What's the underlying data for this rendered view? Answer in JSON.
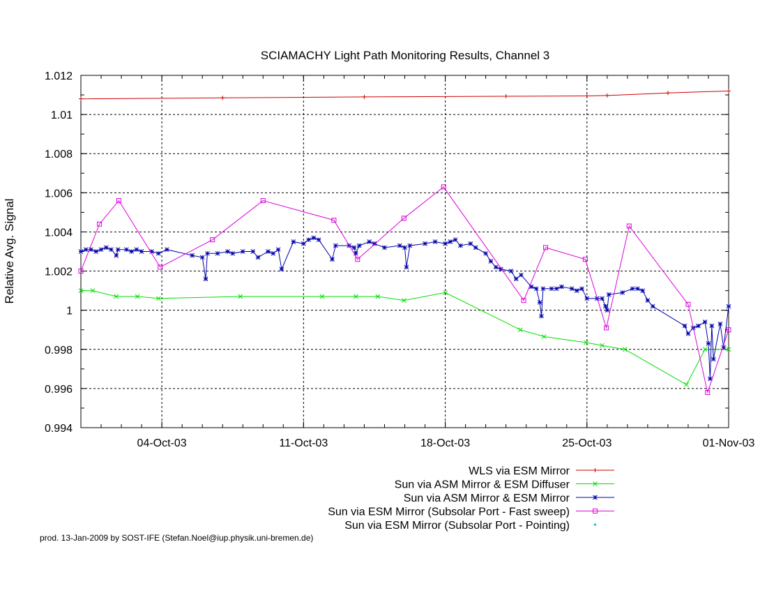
{
  "chart_data": {
    "type": "line",
    "title": "SCIAMACHY Light Path Monitoring Results, Channel 3",
    "xlabel": "",
    "ylabel": "Relative Avg. Signal",
    "x_axis": {
      "type": "date",
      "range": [
        "2003-09-30",
        "2003-11-01"
      ],
      "ticks": [
        {
          "date": "2003-10-04",
          "label": "04-Oct-03"
        },
        {
          "date": "2003-10-11",
          "label": "11-Oct-03"
        },
        {
          "date": "2003-10-18",
          "label": "18-Oct-03"
        },
        {
          "date": "2003-10-25",
          "label": "25-Oct-03"
        },
        {
          "date": "2003-11-01",
          "label": "01-Nov-03"
        }
      ]
    },
    "y_axis": {
      "range": [
        0.994,
        1.012
      ],
      "ticks": [
        {
          "value": 0.994,
          "label": "0.994"
        },
        {
          "value": 0.996,
          "label": "0.996"
        },
        {
          "value": 0.998,
          "label": "0.998"
        },
        {
          "value": 1.0,
          "label": "1"
        },
        {
          "value": 1.002,
          "label": "1.002"
        },
        {
          "value": 1.004,
          "label": "1.004"
        },
        {
          "value": 1.006,
          "label": "1.006"
        },
        {
          "value": 1.008,
          "label": "1.008"
        },
        {
          "value": 1.01,
          "label": "1.01"
        },
        {
          "value": 1.012,
          "label": "1.012"
        }
      ]
    },
    "grid": true,
    "legend_position": "bottom-right",
    "series": [
      {
        "name": "WLS via ESM Mirror",
        "color": "#cc0000",
        "marker": "plus",
        "points": [
          [
            "2003-09-30T00:00",
            1.0108
          ],
          [
            "2003-10-07T00:00",
            1.01085
          ],
          [
            "2003-10-14T00:00",
            1.0109
          ],
          [
            "2003-10-21T00:00",
            1.01093
          ],
          [
            "2003-10-25T00:00",
            1.01095
          ],
          [
            "2003-10-26T00:00",
            1.01097
          ],
          [
            "2003-10-29T00:00",
            1.0111
          ],
          [
            "2003-11-01T00:00",
            1.0112
          ]
        ]
      },
      {
        "name": "Sun via ASM Mirror & ESM Diffuser",
        "color": "#00dd00",
        "marker": "cross",
        "points": [
          [
            "2003-09-30T00:00",
            1.001
          ],
          [
            "2003-09-30T14:00",
            1.001
          ],
          [
            "2003-10-01T18:00",
            1.0007
          ],
          [
            "2003-10-02T19:00",
            1.0007
          ],
          [
            "2003-10-03T20:00",
            1.0006
          ],
          [
            "2003-10-07T21:00",
            1.0007
          ],
          [
            "2003-10-11T22:00",
            1.0007
          ],
          [
            "2003-10-13T14:00",
            1.0007
          ],
          [
            "2003-10-14T16:00",
            1.0007
          ],
          [
            "2003-10-15T23:00",
            1.0005
          ],
          [
            "2003-10-18T00:00",
            1.0009
          ],
          [
            "2003-10-21T17:00",
            0.999
          ],
          [
            "2003-10-22T21:00",
            0.99865
          ],
          [
            "2003-10-24T23:00",
            0.99835
          ],
          [
            "2003-10-25T18:00",
            0.9982
          ],
          [
            "2003-10-26T21:00",
            0.998
          ],
          [
            "2003-10-29T22:00",
            0.9962
          ],
          [
            "2003-10-30T20:00",
            0.998
          ],
          [
            "2003-11-01T00:00",
            0.998
          ]
        ]
      },
      {
        "name": "Sun via ASM Mirror & ESM Mirror",
        "color": "#0000aa",
        "marker": "star",
        "points": [
          [
            "2003-09-30T00:00",
            1.003
          ],
          [
            "2003-09-30T06:00",
            1.0031
          ],
          [
            "2003-09-30T12:00",
            1.0031
          ],
          [
            "2003-09-30T18:00",
            1.003
          ],
          [
            "2003-10-01T00:00",
            1.0031
          ],
          [
            "2003-10-01T06:00",
            1.0032
          ],
          [
            "2003-10-01T12:00",
            1.0031
          ],
          [
            "2003-10-01T18:00",
            1.0028
          ],
          [
            "2003-10-01T20:00",
            1.0031
          ],
          [
            "2003-10-02T06:00",
            1.0031
          ],
          [
            "2003-10-02T12:00",
            1.003
          ],
          [
            "2003-10-02T18:00",
            1.0031
          ],
          [
            "2003-10-03T00:00",
            1.003
          ],
          [
            "2003-10-03T12:00",
            1.003
          ],
          [
            "2003-10-03T20:00",
            1.0029
          ],
          [
            "2003-10-04T06:00",
            1.0031
          ],
          [
            "2003-10-05T12:00",
            1.0028
          ],
          [
            "2003-10-06T00:00",
            1.0027
          ],
          [
            "2003-10-06T04:00",
            1.0016
          ],
          [
            "2003-10-06T06:00",
            1.0029
          ],
          [
            "2003-10-06T18:00",
            1.0029
          ],
          [
            "2003-10-07T06:00",
            1.003
          ],
          [
            "2003-10-07T12:00",
            1.0029
          ],
          [
            "2003-10-08T00:00",
            1.003
          ],
          [
            "2003-10-08T12:00",
            1.003
          ],
          [
            "2003-10-08T18:00",
            1.0027
          ],
          [
            "2003-10-09T06:00",
            1.003
          ],
          [
            "2003-10-09T12:00",
            1.0029
          ],
          [
            "2003-10-09T18:00",
            1.0031
          ],
          [
            "2003-10-09T22:00",
            1.0021
          ],
          [
            "2003-10-10T12:00",
            1.0035
          ],
          [
            "2003-10-11T00:00",
            1.0034
          ],
          [
            "2003-10-11T06:00",
            1.0036
          ],
          [
            "2003-10-11T12:00",
            1.0037
          ],
          [
            "2003-10-11T18:00",
            1.0036
          ],
          [
            "2003-10-12T10:00",
            1.0026
          ],
          [
            "2003-10-12T14:00",
            1.0033
          ],
          [
            "2003-10-13T06:00",
            1.0033
          ],
          [
            "2003-10-13T12:00",
            1.0032
          ],
          [
            "2003-10-13T14:00",
            1.0029
          ],
          [
            "2003-10-13T18:00",
            1.0033
          ],
          [
            "2003-10-14T06:00",
            1.0035
          ],
          [
            "2003-10-14T12:00",
            1.0034
          ],
          [
            "2003-10-15T00:00",
            1.0032
          ],
          [
            "2003-10-15T18:00",
            1.0033
          ],
          [
            "2003-10-16T00:00",
            1.0032
          ],
          [
            "2003-10-16T02:00",
            1.0022
          ],
          [
            "2003-10-16T06:00",
            1.0033
          ],
          [
            "2003-10-17T00:00",
            1.0034
          ],
          [
            "2003-10-17T12:00",
            1.0035
          ],
          [
            "2003-10-18T00:00",
            1.0034
          ],
          [
            "2003-10-18T06:00",
            1.0035
          ],
          [
            "2003-10-18T12:00",
            1.0036
          ],
          [
            "2003-10-18T18:00",
            1.0033
          ],
          [
            "2003-10-19T06:00",
            1.0034
          ],
          [
            "2003-10-19T12:00",
            1.0032
          ],
          [
            "2003-10-20T00:00",
            1.0029
          ],
          [
            "2003-10-20T06:00",
            1.0025
          ],
          [
            "2003-10-20T12:00",
            1.0022
          ],
          [
            "2003-10-20T18:00",
            1.0021
          ],
          [
            "2003-10-21T06:00",
            1.002
          ],
          [
            "2003-10-21T12:00",
            1.0016
          ],
          [
            "2003-10-21T18:00",
            1.0018
          ],
          [
            "2003-10-22T06:00",
            1.0012
          ],
          [
            "2003-10-22T12:00",
            1.0011
          ],
          [
            "2003-10-22T16:00",
            1.0004
          ],
          [
            "2003-10-22T18:00",
            0.9997
          ],
          [
            "2003-10-22T20:00",
            1.0011
          ],
          [
            "2003-10-23T06:00",
            1.0011
          ],
          [
            "2003-10-23T12:00",
            1.0011
          ],
          [
            "2003-10-23T18:00",
            1.0012
          ],
          [
            "2003-10-24T06:00",
            1.0011
          ],
          [
            "2003-10-24T12:00",
            1.001
          ],
          [
            "2003-10-24T18:00",
            1.0011
          ],
          [
            "2003-10-25T00:00",
            1.0006
          ],
          [
            "2003-10-25T12:00",
            1.0006
          ],
          [
            "2003-10-25T18:00",
            1.0006
          ],
          [
            "2003-10-25T22:00",
            1.0002
          ],
          [
            "2003-10-26T00:00",
            1.0
          ],
          [
            "2003-10-26T02:00",
            1.0008
          ],
          [
            "2003-10-26T18:00",
            1.0009
          ],
          [
            "2003-10-27T06:00",
            1.0011
          ],
          [
            "2003-10-27T12:00",
            1.0011
          ],
          [
            "2003-10-27T18:00",
            1.001
          ],
          [
            "2003-10-28T00:00",
            1.0005
          ],
          [
            "2003-10-28T06:00",
            1.0002
          ],
          [
            "2003-10-29T20:00",
            0.9992
          ],
          [
            "2003-10-30T00:00",
            0.9988
          ],
          [
            "2003-10-30T06:00",
            0.9991
          ],
          [
            "2003-10-30T12:00",
            0.9992
          ],
          [
            "2003-10-30T20:00",
            0.9994
          ],
          [
            "2003-10-31T00:00",
            0.9983
          ],
          [
            "2003-10-31T02:00",
            0.9965
          ],
          [
            "2003-10-31T04:00",
            0.9992
          ],
          [
            "2003-10-31T06:00",
            0.9975
          ],
          [
            "2003-10-31T14:00",
            0.9993
          ],
          [
            "2003-10-31T18:00",
            0.9981
          ],
          [
            "2003-11-01T00:00",
            1.0002
          ]
        ]
      },
      {
        "name": "Sun via ESM Mirror (Subsolar Port - Fast sweep)",
        "color": "#dd00dd",
        "marker": "box",
        "points": [
          [
            "2003-09-30T00:00",
            1.002
          ],
          [
            "2003-09-30T22:00",
            1.0044
          ],
          [
            "2003-10-01T21:00",
            1.0056
          ],
          [
            "2003-10-03T22:00",
            1.0022
          ],
          [
            "2003-10-06T12:00",
            1.0036
          ],
          [
            "2003-10-09T00:00",
            1.0056
          ],
          [
            "2003-10-12T12:00",
            1.0046
          ],
          [
            "2003-10-13T16:00",
            1.0026
          ],
          [
            "2003-10-15T23:00",
            1.0047
          ],
          [
            "2003-10-17T22:00",
            1.0063
          ],
          [
            "2003-10-21T21:00",
            1.0005
          ],
          [
            "2003-10-22T23:00",
            1.0032
          ],
          [
            "2003-10-24T22:00",
            1.0026
          ],
          [
            "2003-10-25T23:00",
            0.9991
          ],
          [
            "2003-10-27T02:00",
            1.0043
          ],
          [
            "2003-10-30T00:00",
            1.0003
          ],
          [
            "2003-10-30T23:00",
            0.9958
          ],
          [
            "2003-11-01T00:00",
            0.999
          ]
        ]
      },
      {
        "name": "Sun via ESM Mirror (Subsolar Port - Pointing)",
        "color": "#00cccc",
        "marker": "dot",
        "points": []
      }
    ],
    "footer": "prod. 13-Jan-2009 by SOST-IFE (Stefan.Noel@iup.physik.uni-bremen.de)"
  }
}
